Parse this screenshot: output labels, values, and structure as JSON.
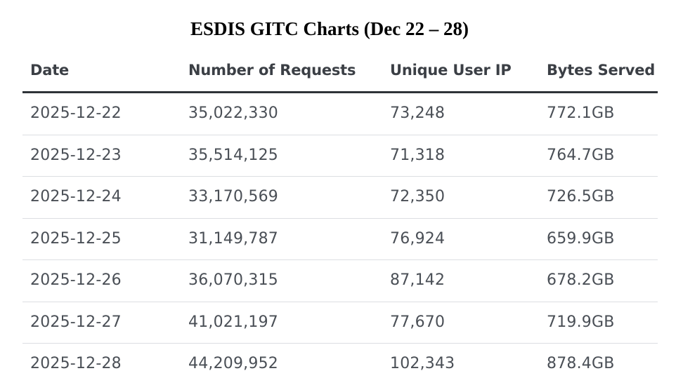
{
  "chart_data": {
    "type": "table",
    "title": "ESDIS GITC Charts (Dec 22 – 28)",
    "columns": [
      "Date",
      "Number of Requests",
      "Unique User IP",
      "Bytes Served"
    ],
    "rows": [
      [
        "2025-12-22",
        "35,022,330",
        "73,248",
        "772.1GB"
      ],
      [
        "2025-12-23",
        "35,514,125",
        "71,318",
        "764.7GB"
      ],
      [
        "2025-12-24",
        "33,170,569",
        "72,350",
        "726.5GB"
      ],
      [
        "2025-12-25",
        "31,149,787",
        "76,924",
        "659.9GB"
      ],
      [
        "2025-12-26",
        "36,070,315",
        "87,142",
        "678.2GB"
      ],
      [
        "2025-12-27",
        "41,021,197",
        "77,670",
        "719.9GB"
      ],
      [
        "2025-12-28",
        "44,209,952",
        "102,343",
        "878.4GB"
      ]
    ]
  }
}
